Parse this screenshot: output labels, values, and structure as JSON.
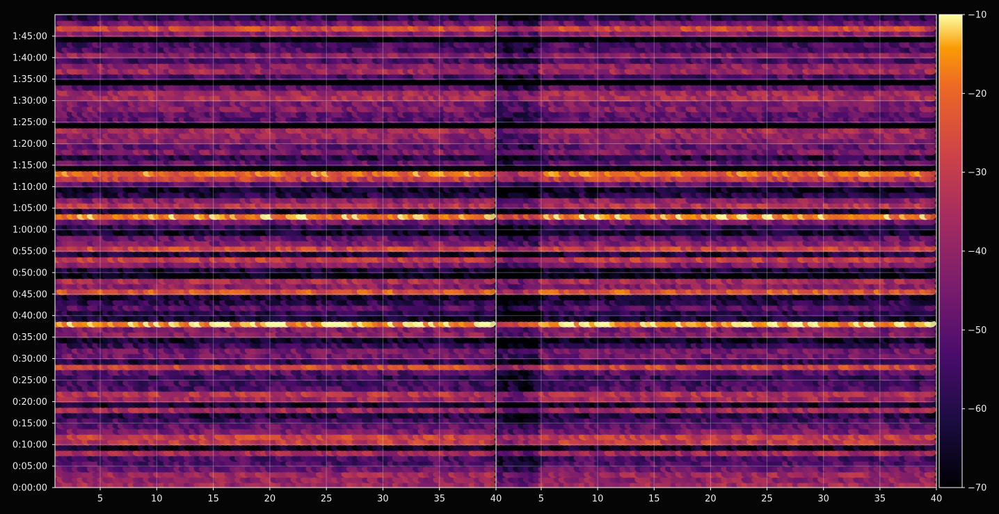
{
  "chart_data": {
    "type": "heatmap",
    "title": "",
    "xlabel": "",
    "ylabel": "",
    "panels": [
      {
        "xlim": [
          1,
          40
        ],
        "xticks": [
          "5",
          "10",
          "15",
          "20",
          "25",
          "30",
          "35",
          "40"
        ]
      },
      {
        "xlim": [
          1,
          40
        ],
        "xticks": [
          "5",
          "10",
          "15",
          "20",
          "25",
          "30",
          "35",
          "40"
        ]
      }
    ],
    "ylim_seconds": [
      0,
      6600
    ],
    "yticks": [
      "0:00:00",
      "0:05:00",
      "0:10:00",
      "0:15:00",
      "0:20:00",
      "0:25:00",
      "0:30:00",
      "0:35:00",
      "0:40:00",
      "0:45:00",
      "0:50:00",
      "0:55:00",
      "1:00:00",
      "1:05:00",
      "1:10:00",
      "1:15:00",
      "1:20:00",
      "1:25:00",
      "1:30:00",
      "1:35:00",
      "1:40:00",
      "1:45:00"
    ],
    "grid": true,
    "colorbar": {
      "colormap": "inferno",
      "range": [
        -70,
        -10
      ],
      "ticks": [
        "−10",
        "−20",
        "−30",
        "−40",
        "−50",
        "−60",
        "−70"
      ]
    },
    "colors": {
      "background": "#050505",
      "axis": "#ffffff",
      "grid": "#ffffff"
    }
  }
}
